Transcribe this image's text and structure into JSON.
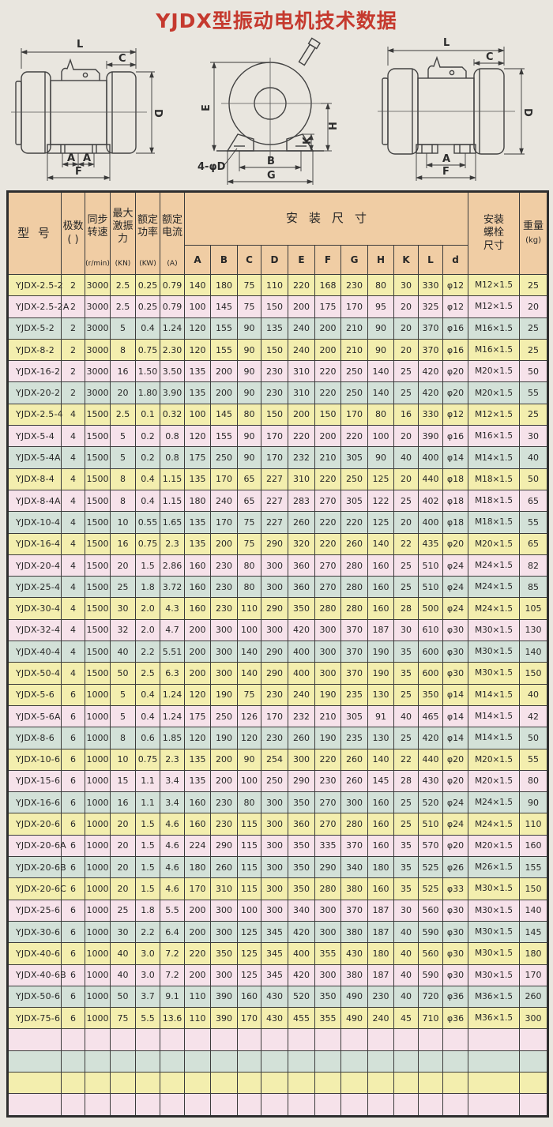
{
  "page": {
    "title": "YJDX型振动电机技术数据"
  },
  "colors": {
    "title_red": "#c5392e",
    "header": "#f0cda4",
    "yellow": "#f3eeae",
    "pink": "#f6e2ea",
    "green": "#d3e1d8",
    "border": "#3c3c3c"
  },
  "drawings": {
    "left": {
      "labels": {
        "L": "L",
        "C": "C",
        "D": "D",
        "A1": "A",
        "A2": "A",
        "F": "F"
      }
    },
    "middle": {
      "labels": {
        "E": "E",
        "B": "B",
        "G": "G",
        "K": "K",
        "H": "H",
        "hole": "4-φD"
      }
    },
    "right": {
      "labels": {
        "L": "L",
        "C": "C",
        "D": "D",
        "A": "A",
        "F": "F"
      }
    }
  },
  "table": {
    "headers": {
      "model": "型  号",
      "poles": "极数",
      "poles_unit": "(   )",
      "speed": "同步转速",
      "speed_unit": "(r/min)",
      "force": "最大激振力",
      "force_unit": "(KN)",
      "power": "额定功率",
      "power_unit": "(KW)",
      "current": "额定电流",
      "current_unit": "(A)",
      "install": "安装尺寸",
      "install_cols": [
        "A",
        "B",
        "C",
        "D",
        "E",
        "F",
        "G",
        "H",
        "K",
        "L",
        "d"
      ],
      "bolt": "安装螺栓尺寸",
      "weight": "重量",
      "weight_unit": "(kg)"
    },
    "rows": [
      {
        "color": "yellow",
        "cells": [
          "YJDX-2.5-2",
          "2",
          "3000",
          "2.5",
          "0.25",
          "0.79",
          "140",
          "180",
          "75",
          "110",
          "220",
          "168",
          "230",
          "80",
          "30",
          "330",
          "φ12",
          "M12×1.5",
          "25"
        ]
      },
      {
        "color": "pink",
        "cells": [
          "YJDX-2.5-2A",
          "2",
          "3000",
          "2.5",
          "0.25",
          "0.79",
          "100",
          "145",
          "75",
          "150",
          "200",
          "175",
          "170",
          "95",
          "20",
          "325",
          "φ12",
          "M12×1.5",
          "20"
        ]
      },
      {
        "color": "green",
        "cells": [
          "YJDX-5-2",
          "2",
          "3000",
          "5",
          "0.4",
          "1.24",
          "120",
          "155",
          "90",
          "135",
          "240",
          "200",
          "210",
          "90",
          "20",
          "370",
          "φ16",
          "M16×1.5",
          "25"
        ]
      },
      {
        "color": "yellow",
        "cells": [
          "YJDX-8-2",
          "2",
          "3000",
          "8",
          "0.75",
          "2.30",
          "120",
          "155",
          "90",
          "150",
          "240",
          "200",
          "210",
          "90",
          "20",
          "370",
          "φ16",
          "M16×1.5",
          "25"
        ]
      },
      {
        "color": "pink",
        "cells": [
          "YJDX-16-2",
          "2",
          "3000",
          "16",
          "1.50",
          "3.50",
          "135",
          "200",
          "90",
          "230",
          "310",
          "220",
          "250",
          "140",
          "25",
          "420",
          "φ20",
          "M20×1.5",
          "50"
        ]
      },
      {
        "color": "green",
        "cells": [
          "YJDX-20-2",
          "2",
          "3000",
          "20",
          "1.80",
          "3.90",
          "135",
          "200",
          "90",
          "230",
          "310",
          "220",
          "250",
          "140",
          "25",
          "420",
          "φ20",
          "M20×1.5",
          "55"
        ]
      },
      {
        "color": "yellow",
        "cells": [
          "YJDX-2.5-4",
          "4",
          "1500",
          "2.5",
          "0.1",
          "0.32",
          "100",
          "145",
          "80",
          "150",
          "200",
          "150",
          "170",
          "80",
          "16",
          "330",
          "φ12",
          "M12×1.5",
          "25"
        ]
      },
      {
        "color": "pink",
        "cells": [
          "YJDX-5-4",
          "4",
          "1500",
          "5",
          "0.2",
          "0.8",
          "120",
          "155",
          "90",
          "170",
          "220",
          "200",
          "220",
          "100",
          "20",
          "390",
          "φ16",
          "M16×1.5",
          "30"
        ]
      },
      {
        "color": "green",
        "cells": [
          "YJDX-5-4A",
          "4",
          "1500",
          "5",
          "0.2",
          "0.8",
          "175",
          "250",
          "90",
          "170",
          "232",
          "210",
          "305",
          "90",
          "40",
          "400",
          "φ14",
          "M14×1.5",
          "40"
        ]
      },
      {
        "color": "yellow",
        "cells": [
          "YJDX-8-4",
          "4",
          "1500",
          "8",
          "0.4",
          "1.15",
          "135",
          "170",
          "65",
          "227",
          "310",
          "220",
          "250",
          "125",
          "20",
          "440",
          "φ18",
          "M18×1.5",
          "50"
        ]
      },
      {
        "color": "pink",
        "cells": [
          "YJDX-8-4A",
          "4",
          "1500",
          "8",
          "0.4",
          "1.15",
          "180",
          "240",
          "65",
          "227",
          "283",
          "270",
          "305",
          "122",
          "25",
          "402",
          "φ18",
          "M18×1.5",
          "65"
        ]
      },
      {
        "color": "green",
        "cells": [
          "YJDX-10-4",
          "4",
          "1500",
          "10",
          "0.55",
          "1.65",
          "135",
          "170",
          "75",
          "227",
          "260",
          "220",
          "220",
          "125",
          "20",
          "400",
          "φ18",
          "M18×1.5",
          "55"
        ]
      },
      {
        "color": "yellow",
        "cells": [
          "YJDX-16-4",
          "4",
          "1500",
          "16",
          "0.75",
          "2.3",
          "135",
          "200",
          "75",
          "290",
          "320",
          "220",
          "260",
          "140",
          "22",
          "435",
          "φ20",
          "M20×1.5",
          "65"
        ]
      },
      {
        "color": "pink",
        "cells": [
          "YJDX-20-4",
          "4",
          "1500",
          "20",
          "1.5",
          "2.86",
          "160",
          "230",
          "80",
          "300",
          "360",
          "270",
          "280",
          "160",
          "25",
          "510",
          "φ24",
          "M24×1.5",
          "82"
        ]
      },
      {
        "color": "green",
        "cells": [
          "YJDX-25-4",
          "4",
          "1500",
          "25",
          "1.8",
          "3.72",
          "160",
          "230",
          "80",
          "300",
          "360",
          "270",
          "280",
          "160",
          "25",
          "510",
          "φ24",
          "M24×1.5",
          "85"
        ]
      },
      {
        "color": "yellow",
        "cells": [
          "YJDX-30-4",
          "4",
          "1500",
          "30",
          "2.0",
          "4.3",
          "160",
          "230",
          "110",
          "290",
          "350",
          "280",
          "280",
          "160",
          "28",
          "500",
          "φ24",
          "M24×1.5",
          "105"
        ]
      },
      {
        "color": "pink",
        "cells": [
          "YJDX-32-4",
          "4",
          "1500",
          "32",
          "2.0",
          "4.7",
          "200",
          "300",
          "100",
          "300",
          "420",
          "300",
          "370",
          "187",
          "30",
          "610",
          "φ30",
          "M30×1.5",
          "130"
        ]
      },
      {
        "color": "green",
        "cells": [
          "YJDX-40-4",
          "4",
          "1500",
          "40",
          "2.2",
          "5.51",
          "200",
          "300",
          "140",
          "290",
          "400",
          "300",
          "370",
          "190",
          "35",
          "600",
          "φ30",
          "M30×1.5",
          "140"
        ]
      },
      {
        "color": "yellow",
        "cells": [
          "YJDX-50-4",
          "4",
          "1500",
          "50",
          "2.5",
          "6.3",
          "200",
          "300",
          "140",
          "290",
          "400",
          "300",
          "370",
          "190",
          "35",
          "600",
          "φ30",
          "M30×1.5",
          "150"
        ]
      },
      {
        "color": "yellow",
        "cells": [
          "YJDX-5-6",
          "6",
          "1000",
          "5",
          "0.4",
          "1.24",
          "120",
          "190",
          "75",
          "230",
          "240",
          "190",
          "235",
          "130",
          "25",
          "350",
          "φ14",
          "M14×1.5",
          "40"
        ]
      },
      {
        "color": "pink",
        "cells": [
          "YJDX-5-6A",
          "6",
          "1000",
          "5",
          "0.4",
          "1.24",
          "175",
          "250",
          "126",
          "170",
          "232",
          "210",
          "305",
          "91",
          "40",
          "465",
          "φ14",
          "M14×1.5",
          "42"
        ]
      },
      {
        "color": "green",
        "cells": [
          "YJDX-8-6",
          "6",
          "1000",
          "8",
          "0.6",
          "1.85",
          "120",
          "190",
          "120",
          "230",
          "260",
          "190",
          "235",
          "130",
          "25",
          "420",
          "φ14",
          "M14×1.5",
          "50"
        ]
      },
      {
        "color": "yellow",
        "cells": [
          "YJDX-10-6",
          "6",
          "1000",
          "10",
          "0.75",
          "2.3",
          "135",
          "200",
          "90",
          "254",
          "300",
          "220",
          "260",
          "140",
          "22",
          "440",
          "φ20",
          "M20×1.5",
          "55"
        ]
      },
      {
        "color": "pink",
        "cells": [
          "YJDX-15-6",
          "6",
          "1000",
          "15",
          "1.1",
          "3.4",
          "135",
          "200",
          "100",
          "250",
          "290",
          "230",
          "260",
          "145",
          "28",
          "430",
          "φ20",
          "M20×1.5",
          "80"
        ]
      },
      {
        "color": "green",
        "cells": [
          "YJDX-16-6",
          "6",
          "1000",
          "16",
          "1.1",
          "3.4",
          "160",
          "230",
          "80",
          "300",
          "350",
          "270",
          "300",
          "160",
          "25",
          "520",
          "φ24",
          "M24×1.5",
          "90"
        ]
      },
      {
        "color": "yellow",
        "cells": [
          "YJDX-20-6",
          "6",
          "1000",
          "20",
          "1.5",
          "4.6",
          "160",
          "230",
          "115",
          "300",
          "360",
          "270",
          "280",
          "160",
          "25",
          "510",
          "φ24",
          "M24×1.5",
          "110"
        ]
      },
      {
        "color": "pink",
        "cells": [
          "YJDX-20-6A",
          "6",
          "1000",
          "20",
          "1.5",
          "4.6",
          "224",
          "290",
          "115",
          "300",
          "350",
          "335",
          "370",
          "160",
          "35",
          "570",
          "φ20",
          "M20×1.5",
          "160"
        ]
      },
      {
        "color": "green",
        "cells": [
          "YJDX-20-6B",
          "6",
          "1000",
          "20",
          "1.5",
          "4.6",
          "180",
          "260",
          "115",
          "300",
          "350",
          "290",
          "340",
          "180",
          "35",
          "525",
          "φ26",
          "M26×1.5",
          "155"
        ]
      },
      {
        "color": "yellow",
        "cells": [
          "YJDX-20-6C",
          "6",
          "1000",
          "20",
          "1.5",
          "4.6",
          "170",
          "310",
          "115",
          "300",
          "350",
          "280",
          "380",
          "160",
          "35",
          "525",
          "φ33",
          "M30×1.5",
          "150"
        ]
      },
      {
        "color": "pink",
        "cells": [
          "YJDX-25-6",
          "6",
          "1000",
          "25",
          "1.8",
          "5.5",
          "200",
          "300",
          "100",
          "300",
          "340",
          "300",
          "370",
          "187",
          "30",
          "560",
          "φ30",
          "M30×1.5",
          "140"
        ]
      },
      {
        "color": "green",
        "cells": [
          "YJDX-30-6",
          "6",
          "1000",
          "30",
          "2.2",
          "6.4",
          "200",
          "300",
          "125",
          "345",
          "420",
          "300",
          "380",
          "187",
          "40",
          "590",
          "φ30",
          "M30×1.5",
          "145"
        ]
      },
      {
        "color": "yellow",
        "cells": [
          "YJDX-40-6",
          "6",
          "1000",
          "40",
          "3.0",
          "7.2",
          "220",
          "350",
          "125",
          "345",
          "400",
          "355",
          "430",
          "180",
          "40",
          "560",
          "φ30",
          "M30×1.5",
          "180"
        ]
      },
      {
        "color": "pink",
        "cells": [
          "YJDX-40-6B",
          "6",
          "1000",
          "40",
          "3.0",
          "7.2",
          "200",
          "300",
          "125",
          "345",
          "420",
          "300",
          "380",
          "187",
          "40",
          "590",
          "φ30",
          "M30×1.5",
          "170"
        ]
      },
      {
        "color": "green",
        "cells": [
          "YJDX-50-6",
          "6",
          "1000",
          "50",
          "3.7",
          "9.1",
          "110",
          "390",
          "160",
          "430",
          "520",
          "350",
          "490",
          "230",
          "40",
          "720",
          "φ36",
          "M36×1.5",
          "260"
        ]
      },
      {
        "color": "yellow",
        "cells": [
          "YJDX-75-6",
          "6",
          "1000",
          "75",
          "5.5",
          "13.6",
          "110",
          "390",
          "170",
          "430",
          "455",
          "355",
          "490",
          "240",
          "45",
          "710",
          "φ36",
          "M36×1.5",
          "300"
        ]
      }
    ],
    "empty_row_colors": [
      "pink",
      "green",
      "yellow",
      "pink"
    ]
  }
}
